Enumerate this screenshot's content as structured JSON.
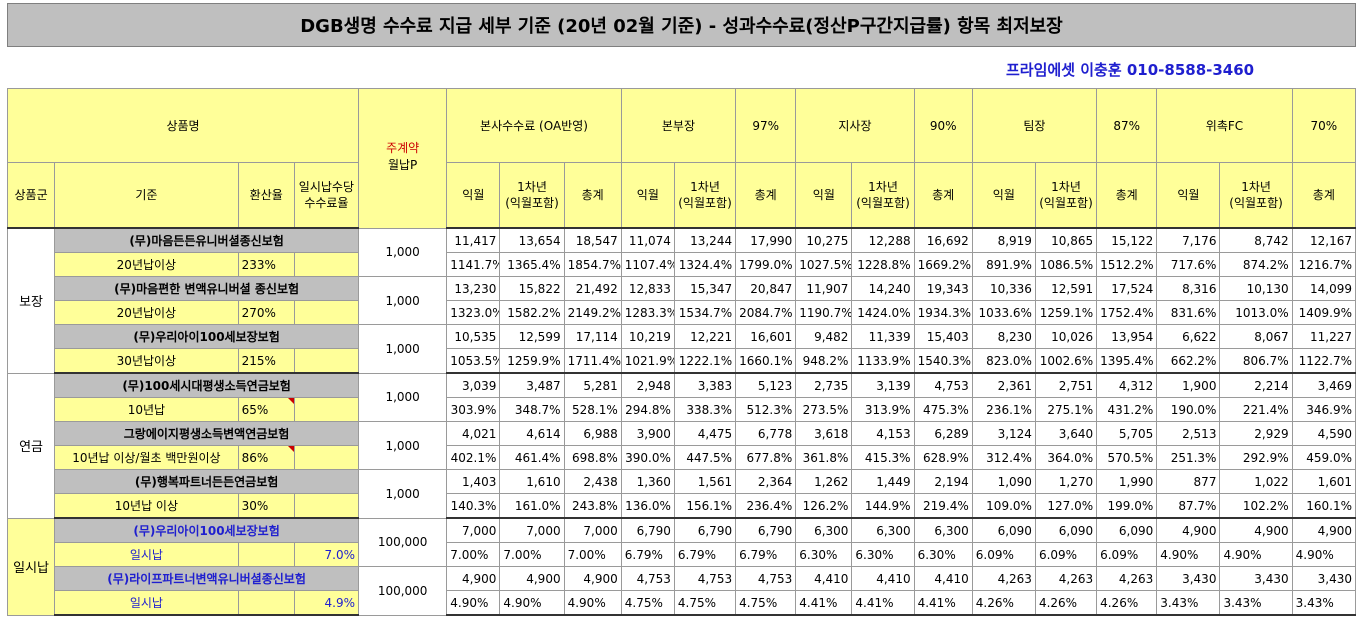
{
  "title": "DGB생명 수수료 지급 세부 기준 (20년 02월 기준) - 성과수수료(정산P구간지급률) 항목 최저보장",
  "contact": "프라임에셋 이충훈 010-8588-3460",
  "header": {
    "product_name": "상품명",
    "main_contract_1": "주계약",
    "main_contract_2": "월납P",
    "hq_commission": "본사수수료 (OA반영)",
    "branch_head": "본부장",
    "branch_head_pct": "97%",
    "office_head": "지사장",
    "office_head_pct": "90%",
    "team_head": "팀장",
    "team_head_pct": "87%",
    "fc": "위촉FC",
    "fc_pct": "70%",
    "group": "상품군",
    "basis": "기준",
    "conv_rate": "환산율",
    "lump_rate_1": "일시납수당",
    "lump_rate_2": "수수료율",
    "next_month": "익월",
    "first_year_1": "1차년",
    "first_year_2": "(익월포함)",
    "total": "총계"
  },
  "groups": [
    {
      "name": "보장",
      "products": [
        {
          "name": "(무)마음든든유니버셜종신보험",
          "basis": "20년납이상",
          "rate": "233%",
          "premium": "1,000",
          "nums": [
            "11,417",
            "13,654",
            "18,547",
            "11,074",
            "13,244",
            "17,990",
            "10,275",
            "12,288",
            "16,692",
            "8,919",
            "10,865",
            "15,122",
            "7,176",
            "8,742",
            "12,167"
          ],
          "pcts": [
            "1141.7%",
            "1365.4%",
            "1854.7%",
            "1107.4%",
            "1324.4%",
            "1799.0%",
            "1027.5%",
            "1228.8%",
            "1669.2%",
            "891.9%",
            "1086.5%",
            "1512.2%",
            "717.6%",
            "874.2%",
            "1216.7%"
          ]
        },
        {
          "name": "(무)마음편한 변액유니버셜 종신보험",
          "basis": "20년납이상",
          "rate": "270%",
          "premium": "1,000",
          "nums": [
            "13,230",
            "15,822",
            "21,492",
            "12,833",
            "15,347",
            "20,847",
            "11,907",
            "14,240",
            "19,343",
            "10,336",
            "12,591",
            "17,524",
            "8,316",
            "10,130",
            "14,099"
          ],
          "pcts": [
            "1323.0%",
            "1582.2%",
            "2149.2%",
            "1283.3%",
            "1534.7%",
            "2084.7%",
            "1190.7%",
            "1424.0%",
            "1934.3%",
            "1033.6%",
            "1259.1%",
            "1752.4%",
            "831.6%",
            "1013.0%",
            "1409.9%"
          ]
        },
        {
          "name": "(무)우리아이100세보장보험",
          "basis": "30년납이상",
          "rate": "215%",
          "premium": "1,000",
          "nums": [
            "10,535",
            "12,599",
            "17,114",
            "10,219",
            "12,221",
            "16,601",
            "9,482",
            "11,339",
            "15,403",
            "8,230",
            "10,026",
            "13,954",
            "6,622",
            "8,067",
            "11,227"
          ],
          "pcts": [
            "1053.5%",
            "1259.9%",
            "1711.4%",
            "1021.9%",
            "1222.1%",
            "1660.1%",
            "948.2%",
            "1133.9%",
            "1540.3%",
            "823.0%",
            "1002.6%",
            "1395.4%",
            "662.2%",
            "806.7%",
            "1122.7%"
          ]
        }
      ]
    },
    {
      "name": "연금",
      "products": [
        {
          "name": "(무)100세시대평생소득연금보험",
          "basis": "10년납",
          "rate": "65%",
          "premium": "1,000",
          "nums": [
            "3,039",
            "3,487",
            "5,281",
            "2,948",
            "3,383",
            "5,123",
            "2,735",
            "3,139",
            "4,753",
            "2,361",
            "2,751",
            "4,312",
            "1,900",
            "2,214",
            "3,469"
          ],
          "pcts": [
            "303.9%",
            "348.7%",
            "528.1%",
            "294.8%",
            "338.3%",
            "512.3%",
            "273.5%",
            "313.9%",
            "475.3%",
            "236.1%",
            "275.1%",
            "431.2%",
            "190.0%",
            "221.4%",
            "346.9%"
          ]
        },
        {
          "name": "그랑에이지평생소득변액연금보험",
          "basis": "10년납 이상/월초 백만원이상",
          "rate": "86%",
          "premium": "1,000",
          "nums": [
            "4,021",
            "4,614",
            "6,988",
            "3,900",
            "4,475",
            "6,778",
            "3,618",
            "4,153",
            "6,289",
            "3,124",
            "3,640",
            "5,705",
            "2,513",
            "2,929",
            "4,590"
          ],
          "pcts": [
            "402.1%",
            "461.4%",
            "698.8%",
            "390.0%",
            "447.5%",
            "677.8%",
            "361.8%",
            "415.3%",
            "628.9%",
            "312.4%",
            "364.0%",
            "570.5%",
            "251.3%",
            "292.9%",
            "459.0%"
          ]
        },
        {
          "name": "(무)행복파트너든든연금보험",
          "basis": "10년납 이상",
          "rate": "30%",
          "premium": "1,000",
          "nums": [
            "1,403",
            "1,610",
            "2,438",
            "1,360",
            "1,561",
            "2,364",
            "1,262",
            "1,449",
            "2,194",
            "1,090",
            "1,270",
            "1,990",
            "877",
            "1,022",
            "1,601"
          ],
          "pcts": [
            "140.3%",
            "161.0%",
            "243.8%",
            "136.0%",
            "156.1%",
            "236.4%",
            "126.2%",
            "144.9%",
            "219.4%",
            "109.0%",
            "127.0%",
            "199.0%",
            "87.7%",
            "102.2%",
            "160.1%"
          ]
        }
      ]
    },
    {
      "name": "일시납",
      "products": [
        {
          "name": "(무)우리아이100세보장보험",
          "basis": "일시납",
          "rate": "7.0%",
          "premium": "100,000",
          "nums": [
            "7,000",
            "7,000",
            "7,000",
            "6,790",
            "6,790",
            "6,790",
            "6,300",
            "6,300",
            "6,300",
            "6,090",
            "6,090",
            "6,090",
            "4,900",
            "4,900",
            "4,900"
          ],
          "pcts": [
            "7.00%",
            "7.00%",
            "7.00%",
            "6.79%",
            "6.79%",
            "6.79%",
            "6.30%",
            "6.30%",
            "6.30%",
            "6.09%",
            "6.09%",
            "6.09%",
            "4.90%",
            "4.90%",
            "4.90%"
          ]
        },
        {
          "name": "(무)라이프파트너변액유니버셜종신보험",
          "basis": "일시납",
          "rate": "4.9%",
          "premium": "100,000",
          "nums": [
            "4,900",
            "4,900",
            "4,900",
            "4,753",
            "4,753",
            "4,753",
            "4,410",
            "4,410",
            "4,410",
            "4,263",
            "4,263",
            "4,263",
            "3,430",
            "3,430",
            "3,430"
          ],
          "pcts": [
            "4.90%",
            "4.90%",
            "4.90%",
            "4.75%",
            "4.75%",
            "4.75%",
            "4.41%",
            "4.41%",
            "4.41%",
            "4.26%",
            "4.26%",
            "4.26%",
            "3.43%",
            "3.43%",
            "3.43%"
          ]
        }
      ]
    }
  ],
  "colors": {
    "header_bg": "#ffff99",
    "product_bg": "#bfbfbf",
    "blue_text": "#1f1fcf",
    "red_text": "#cc0000"
  }
}
